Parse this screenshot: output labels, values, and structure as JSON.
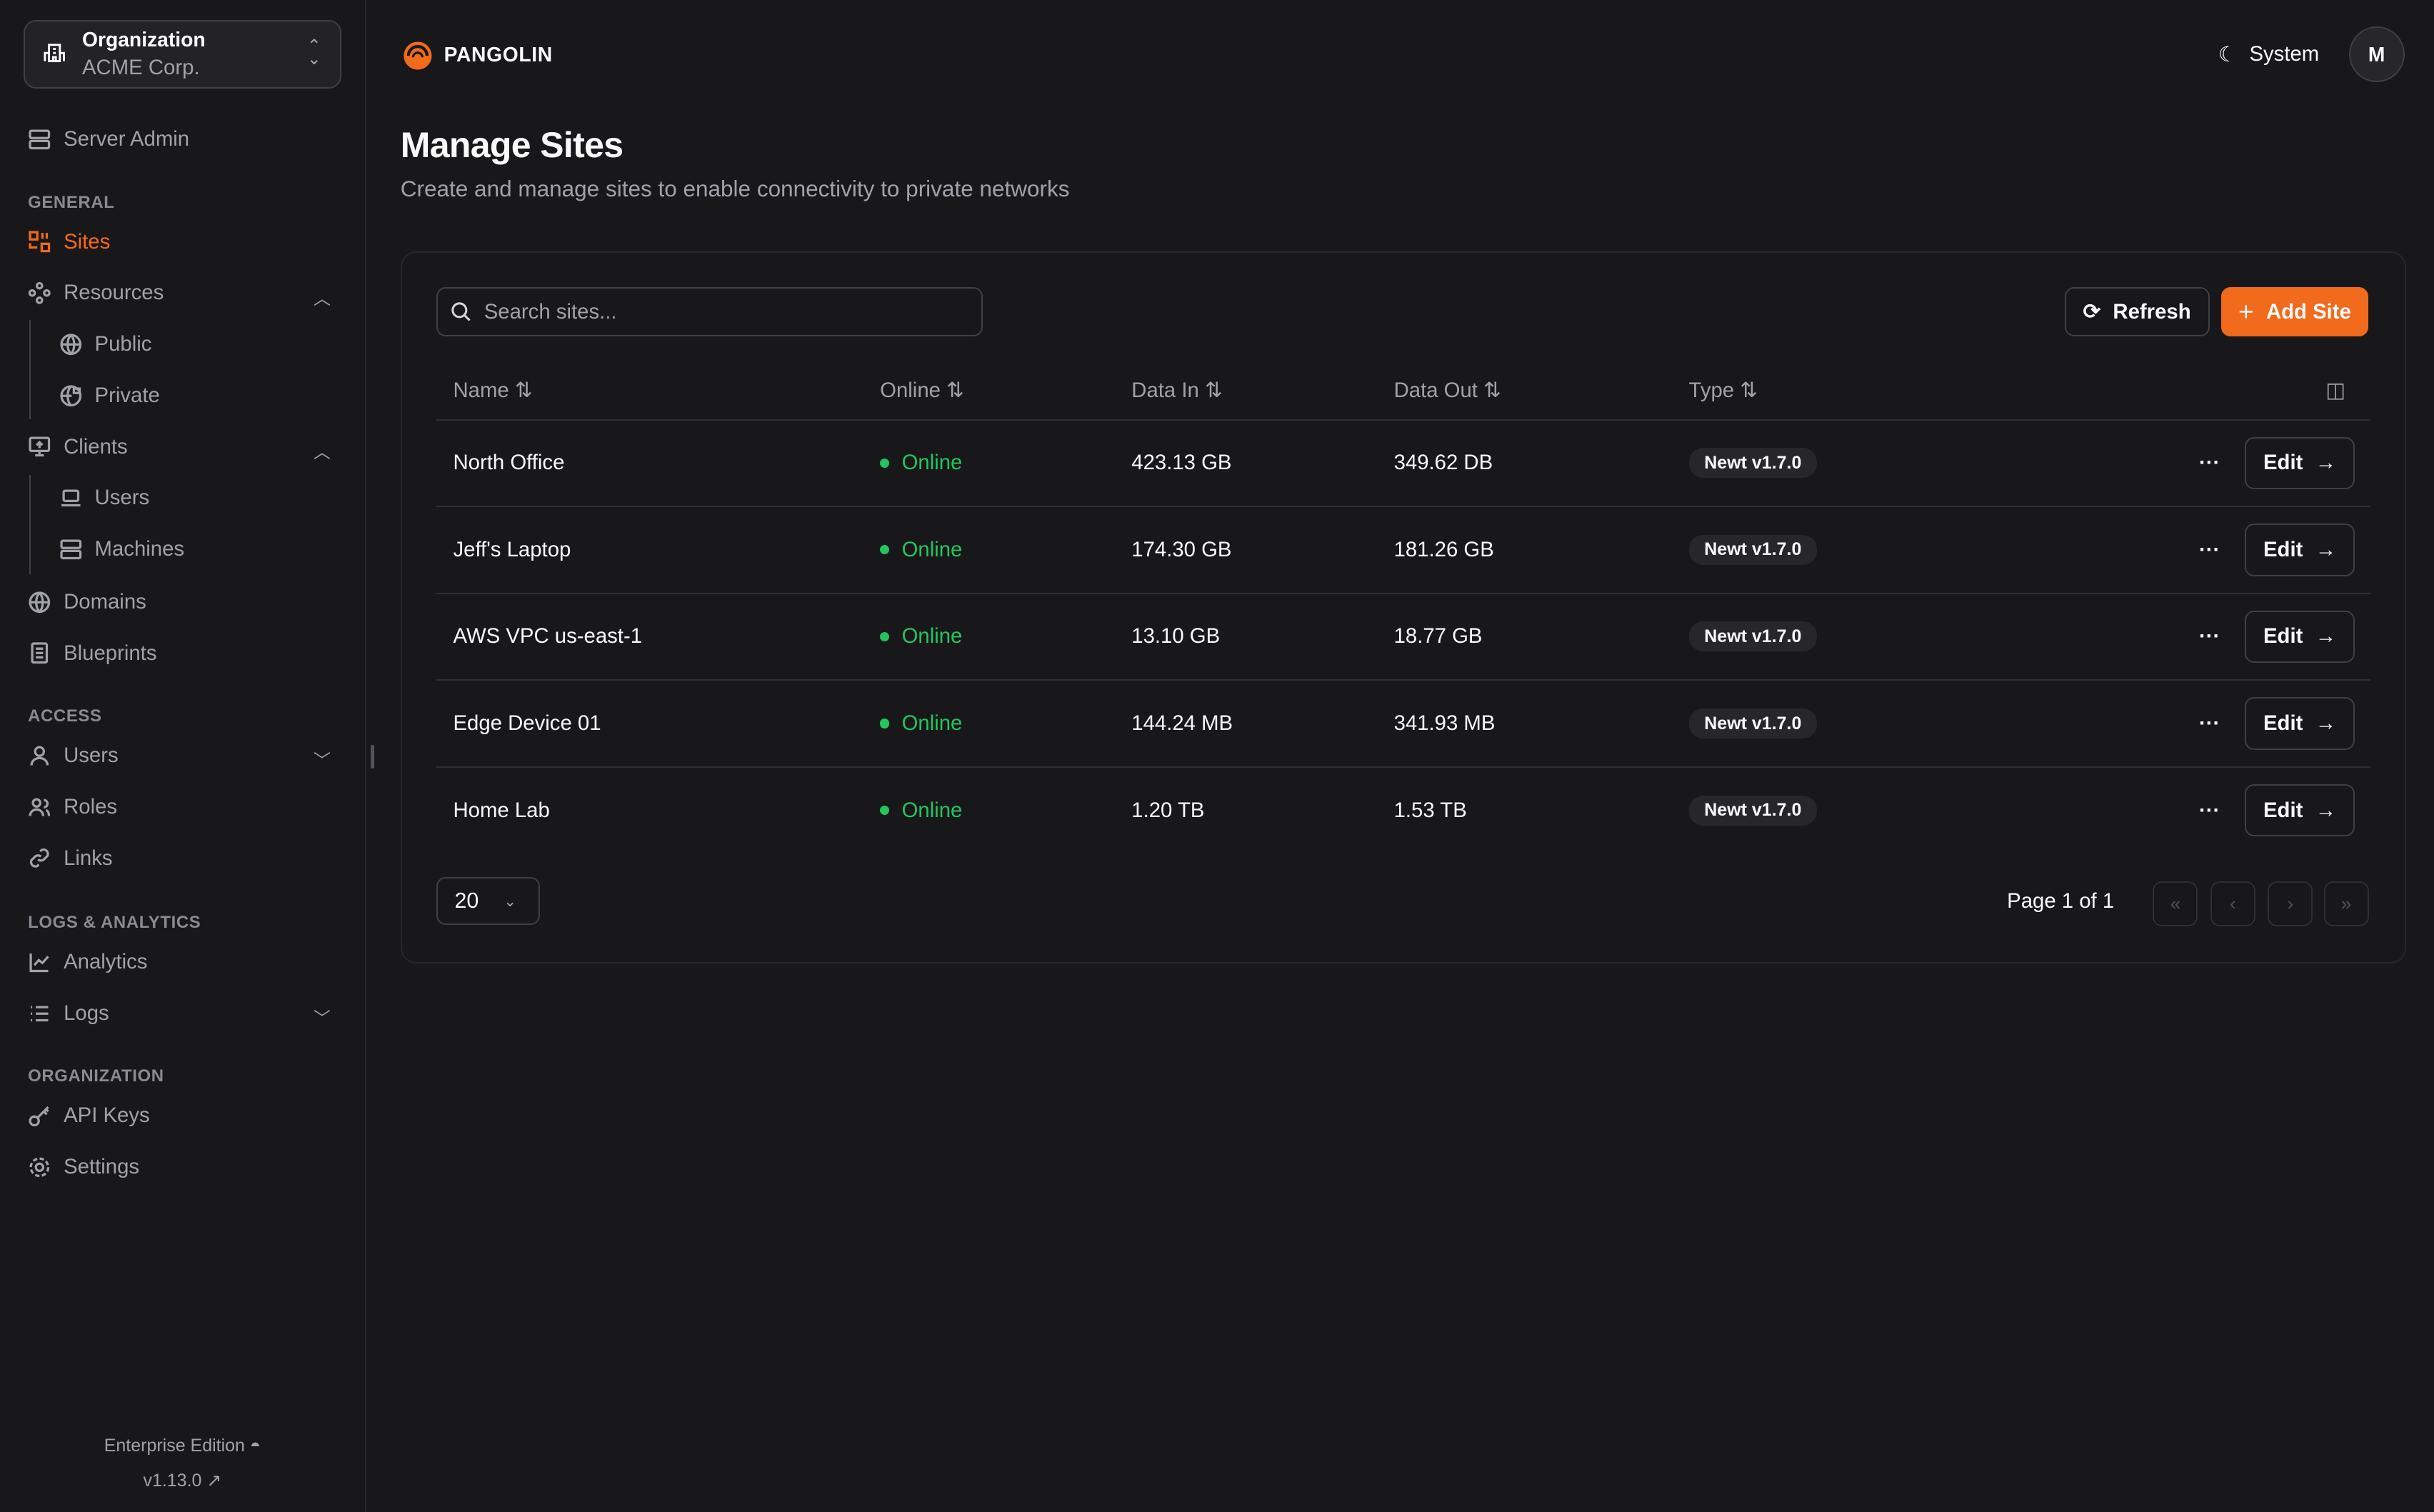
{
  "org": {
    "label": "Organization",
    "name": "ACME Corp."
  },
  "sidebar": {
    "server_admin": "Server Admin",
    "sections": {
      "general": "GENERAL",
      "access": "ACCESS",
      "logs": "LOGS & ANALYTICS",
      "organization": "ORGANIZATION"
    },
    "items": {
      "sites": "Sites",
      "resources": "Resources",
      "public": "Public",
      "private": "Private",
      "clients": "Clients",
      "users_client": "Users",
      "machines": "Machines",
      "domains": "Domains",
      "blueprints": "Blueprints",
      "users": "Users",
      "roles": "Roles",
      "links": "Links",
      "analytics": "Analytics",
      "logs": "Logs",
      "api_keys": "API Keys",
      "settings": "Settings"
    },
    "edition": "Enterprise Edition",
    "version": "v1.13.0"
  },
  "header": {
    "brand": "PANGOLIN",
    "theme": "System",
    "avatar": "M"
  },
  "page": {
    "title": "Manage Sites",
    "subtitle": "Create and manage sites to enable connectivity to private networks"
  },
  "toolbar": {
    "search_placeholder": "Search sites...",
    "refresh": "Refresh",
    "add": "Add Site"
  },
  "table": {
    "columns": [
      "Name",
      "Online",
      "Data In",
      "Data Out",
      "Type"
    ],
    "rows": [
      {
        "name": "North Office",
        "online": "Online",
        "in": "423.13 GB",
        "out": "349.62 DB",
        "type": "Newt v1.7.0"
      },
      {
        "name": "Jeff's Laptop",
        "online": "Online",
        "in": "174.30 GB",
        "out": "181.26 GB",
        "type": "Newt v1.7.0"
      },
      {
        "name": "AWS VPC us-east-1",
        "online": "Online",
        "in": "13.10 GB",
        "out": "18.77 GB",
        "type": "Newt v1.7.0"
      },
      {
        "name": "Edge Device 01",
        "online": "Online",
        "in": "144.24 MB",
        "out": "341.93 MB",
        "type": "Newt v1.7.0"
      },
      {
        "name": "Home Lab",
        "online": "Online",
        "in": "1.20 TB",
        "out": "1.53 TB",
        "type": "Newt v1.7.0"
      }
    ],
    "edit": "Edit"
  },
  "pagination": {
    "page_size": "20",
    "page_info": "Page 1 of 1"
  },
  "colors": {
    "accent": "#f26a1b",
    "online": "#22c55e",
    "background": "#18181b"
  }
}
